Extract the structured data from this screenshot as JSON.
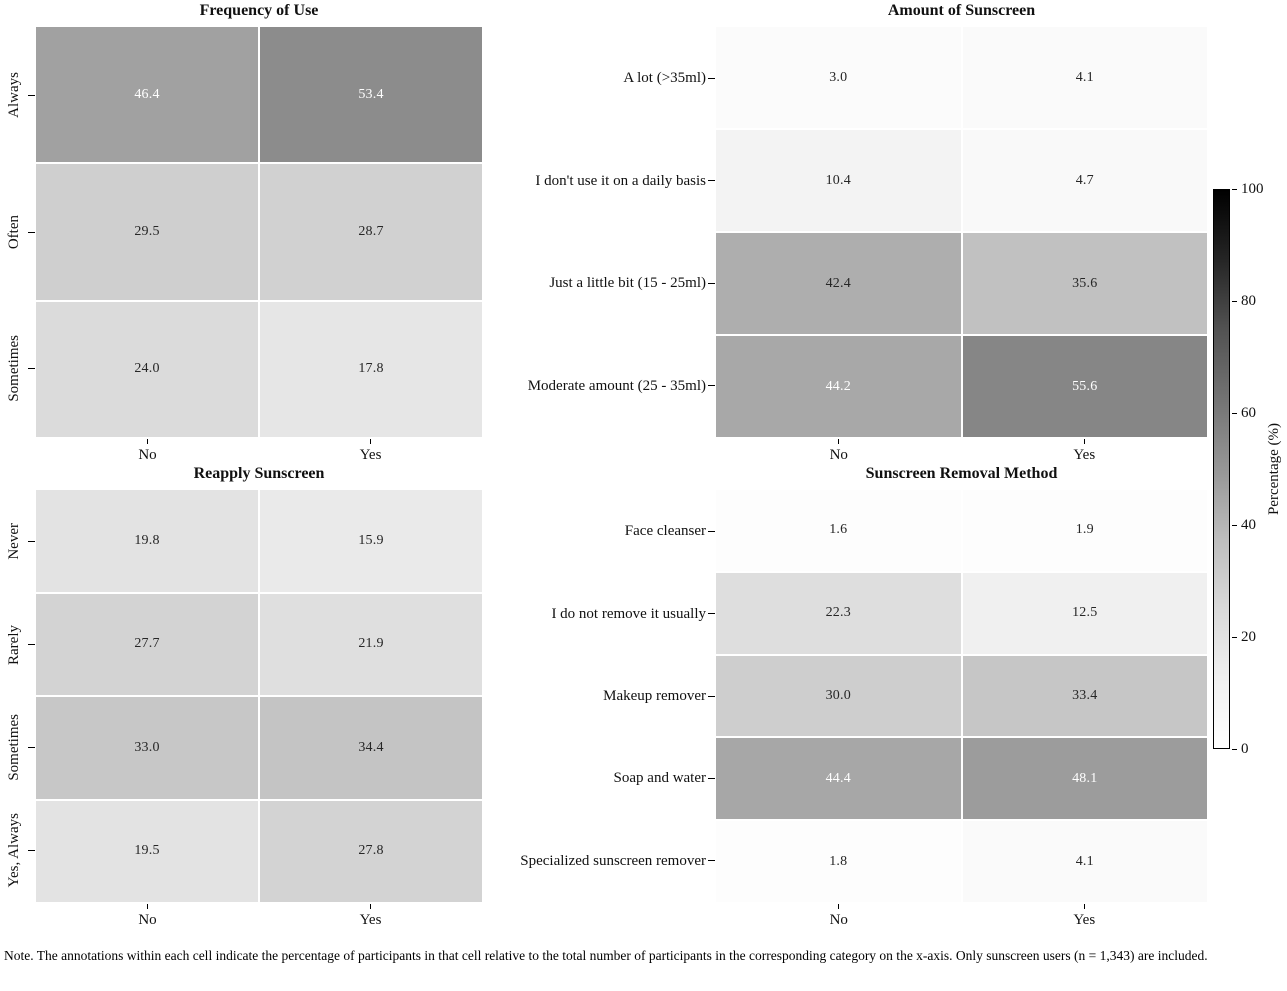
{
  "figure": {
    "note": "Note. The annotations within each cell indicate the percentage of participants in that cell  relative to the total number of participants in the corresponding category on the x-axis. Only sunscreen users (n = 1,343) are included."
  },
  "colorbar": {
    "label": "Percentage (%)",
    "ticks": [
      0,
      20,
      40,
      60,
      80,
      100
    ],
    "min": 0,
    "max": 100,
    "colormap": "Greys",
    "low_color": "#ffffff",
    "high_color": "#000000"
  },
  "chart_data": [
    {
      "type": "heatmap",
      "title": "Frequency of Use",
      "x_categories": [
        "No",
        "Yes"
      ],
      "y_categories": [
        "Always",
        "Often",
        "Sometimes"
      ],
      "values": [
        [
          46.4,
          53.4
        ],
        [
          29.5,
          28.7
        ],
        [
          24.0,
          17.8
        ]
      ]
    },
    {
      "type": "heatmap",
      "title": "Amount of Sunscreen",
      "x_categories": [
        "No",
        "Yes"
      ],
      "y_categories": [
        "A lot (>35ml)",
        "I don't use it on a daily basis",
        "Just a little bit (15 - 25ml)",
        "Moderate amount (25 - 35ml)"
      ],
      "values": [
        [
          3.0,
          4.1
        ],
        [
          10.4,
          4.7
        ],
        [
          42.4,
          35.6
        ],
        [
          44.2,
          55.6
        ]
      ]
    },
    {
      "type": "heatmap",
      "title": "Reapply Sunscreen",
      "x_categories": [
        "No",
        "Yes"
      ],
      "y_categories": [
        "Never",
        "Rarely",
        "Sometimes",
        "Yes, Always"
      ],
      "values": [
        [
          19.8,
          15.9
        ],
        [
          27.7,
          21.9
        ],
        [
          33.0,
          34.4
        ],
        [
          19.5,
          27.8
        ]
      ]
    },
    {
      "type": "heatmap",
      "title": "Sunscreen Removal Method",
      "x_categories": [
        "No",
        "Yes"
      ],
      "y_categories": [
        "Face cleanser",
        "I do not remove it usually",
        "Makeup remover",
        "Soap and water",
        "Specialized sunscreen remover"
      ],
      "values": [
        [
          1.6,
          1.9
        ],
        [
          22.3,
          12.5
        ],
        [
          30.0,
          33.4
        ],
        [
          44.4,
          48.1
        ],
        [
          1.8,
          4.1
        ]
      ]
    }
  ]
}
